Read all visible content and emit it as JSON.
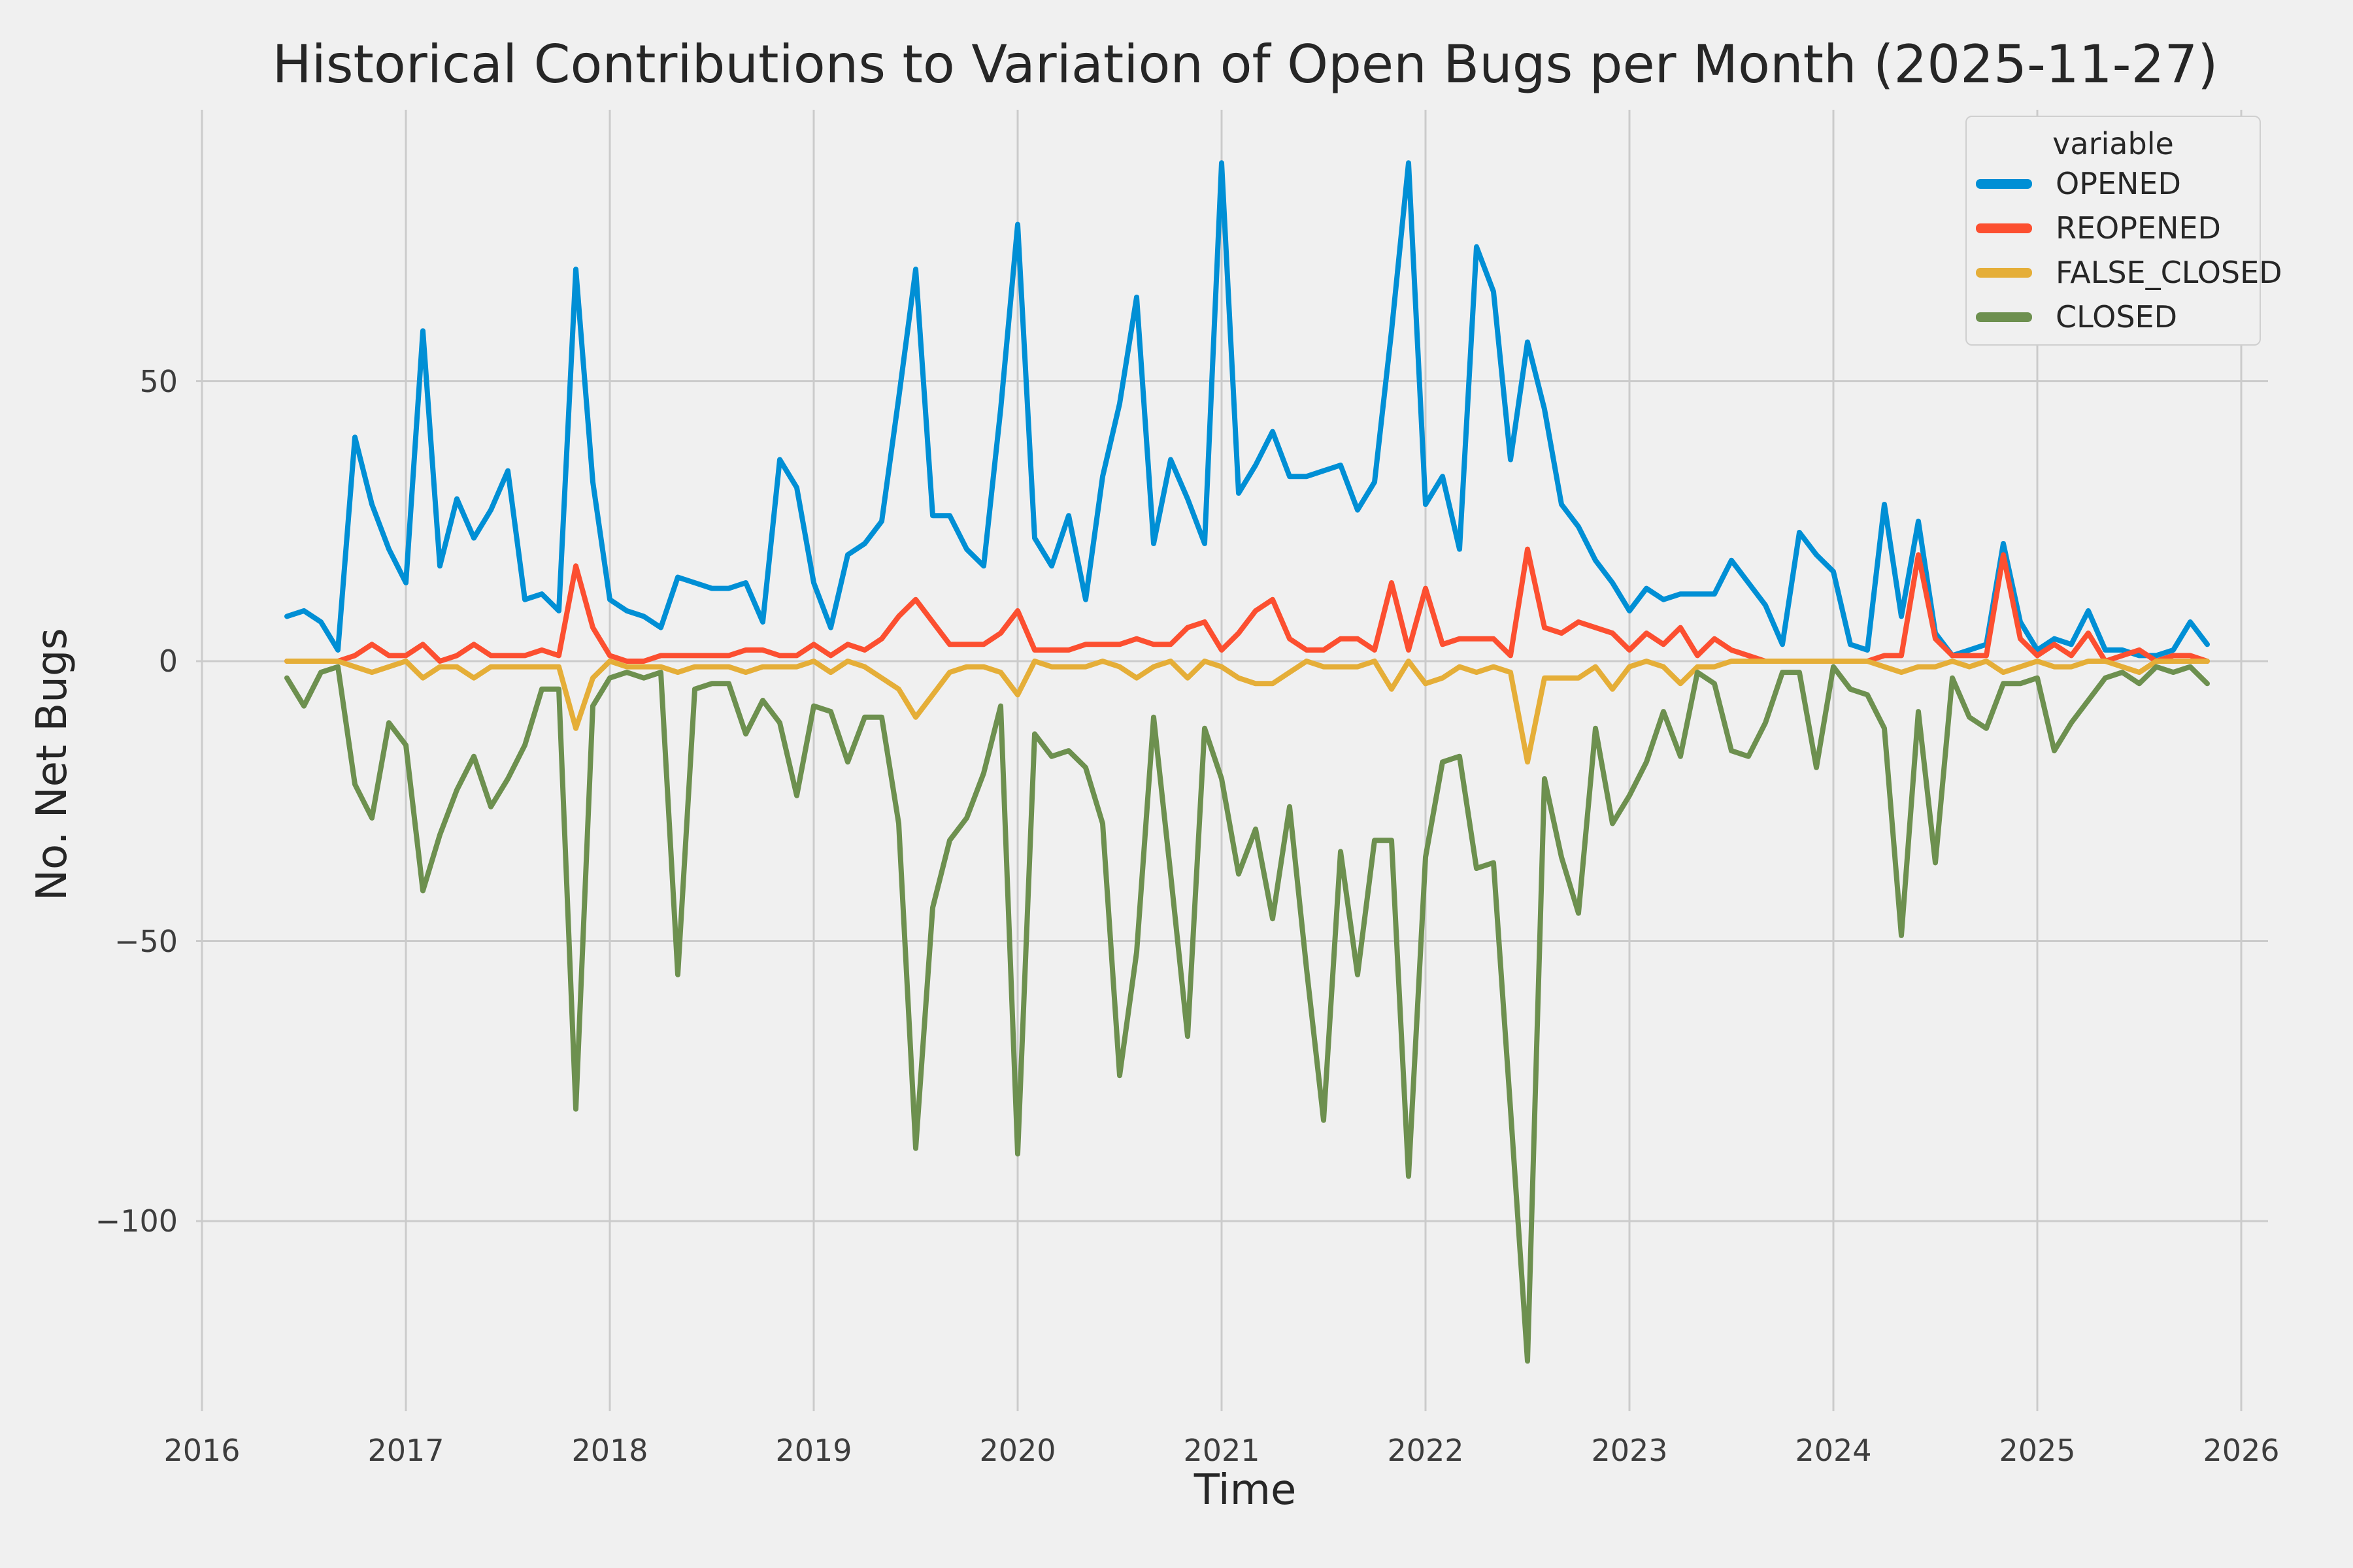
{
  "chart_data": {
    "type": "line",
    "title": "Historical Contributions to Variation of Open Bugs per Month (2025-11-27)",
    "xlabel": "Time",
    "ylabel": "No. Net Bugs",
    "legend_title": "variable",
    "legend_position": "upper right",
    "grid": true,
    "background_color": "#f0f0f0",
    "grid_color": "#cbcbcb",
    "text_color": "#262626",
    "tick_color": "#3d3d3d",
    "start_month": "2016-06",
    "end_month": "2025-11",
    "x_tick_labels": [
      "2016",
      "2017",
      "2018",
      "2019",
      "2020",
      "2021",
      "2022",
      "2023",
      "2024",
      "2025",
      "2026"
    ],
    "y_tick_values": [
      50,
      0,
      -50,
      -100
    ],
    "y_tick_labels": [
      "50",
      "0",
      "−50",
      "−100"
    ],
    "ylim": [
      -134,
      98
    ],
    "series": [
      {
        "name": "OPENED",
        "color": "#008fd5",
        "values": [
          8,
          9,
          7,
          2,
          40,
          28,
          20,
          14,
          59,
          17,
          29,
          22,
          27,
          34,
          11,
          12,
          9,
          70,
          32,
          11,
          9,
          8,
          6,
          15,
          14,
          13,
          13,
          14,
          7,
          36,
          31,
          14,
          6,
          19,
          21,
          25,
          47,
          70,
          26,
          26,
          20,
          17,
          45,
          78,
          22,
          17,
          26,
          11,
          33,
          46,
          65,
          21,
          36,
          29,
          21,
          89,
          30,
          35,
          41,
          33,
          33,
          34,
          35,
          27,
          32,
          59,
          89,
          28,
          33,
          20,
          74,
          66,
          36,
          57,
          45,
          28,
          24,
          18,
          14,
          9,
          13,
          11,
          12,
          12,
          12,
          18,
          14,
          10,
          3,
          23,
          19,
          16,
          3,
          2,
          28,
          8,
          25,
          5,
          1,
          2,
          3,
          21,
          7,
          2,
          4,
          3,
          9,
          2,
          2,
          1,
          1,
          2,
          7,
          3
        ]
      },
      {
        "name": "REOPENED",
        "color": "#fc4f30",
        "values": [
          0,
          0,
          0,
          0,
          1,
          3,
          1,
          1,
          3,
          0,
          1,
          3,
          1,
          1,
          1,
          2,
          1,
          17,
          6,
          1,
          0,
          0,
          1,
          1,
          1,
          1,
          1,
          2,
          2,
          1,
          1,
          3,
          1,
          3,
          2,
          4,
          8,
          11,
          7,
          3,
          3,
          3,
          5,
          9,
          2,
          2,
          2,
          3,
          3,
          3,
          4,
          3,
          3,
          6,
          7,
          2,
          5,
          9,
          11,
          4,
          2,
          2,
          4,
          4,
          2,
          14,
          2,
          13,
          3,
          4,
          4,
          4,
          1,
          20,
          6,
          5,
          7,
          6,
          5,
          2,
          5,
          3,
          6,
          1,
          4,
          2,
          1,
          0,
          0,
          0,
          0,
          0,
          0,
          0,
          1,
          1,
          19,
          4,
          1,
          1,
          1,
          19,
          4,
          1,
          3,
          1,
          5,
          0,
          1,
          2,
          0,
          1,
          1,
          0
        ]
      },
      {
        "name": "FALSE_CLOSED",
        "color": "#e5ae38",
        "values": [
          0,
          0,
          0,
          0,
          -1,
          -2,
          -1,
          0,
          -3,
          -1,
          -1,
          -3,
          -1,
          -1,
          -1,
          -1,
          -1,
          -12,
          -3,
          0,
          -1,
          -1,
          -1,
          -2,
          -1,
          -1,
          -1,
          -2,
          -1,
          -1,
          -1,
          0,
          -2,
          0,
          -1,
          -3,
          -5,
          -10,
          -6,
          -2,
          -1,
          -1,
          -2,
          -6,
          0,
          -1,
          -1,
          -1,
          0,
          -1,
          -3,
          -1,
          0,
          -3,
          0,
          -1,
          -3,
          -4,
          -4,
          -2,
          0,
          -1,
          -1,
          -1,
          0,
          -5,
          0,
          -4,
          -3,
          -1,
          -2,
          -1,
          -2,
          -18,
          -3,
          -3,
          -3,
          -1,
          -5,
          -1,
          0,
          -1,
          -4,
          -1,
          -1,
          0,
          0,
          0,
          0,
          0,
          0,
          0,
          0,
          0,
          -1,
          -2,
          -1,
          -1,
          0,
          -1,
          0,
          -2,
          -1,
          0,
          -1,
          -1,
          0,
          0,
          -1,
          -2,
          0,
          0,
          0,
          0
        ]
      },
      {
        "name": "CLOSED",
        "color": "#6d904f",
        "values": [
          -3,
          -8,
          -2,
          -1,
          -22,
          -28,
          -11,
          -15,
          -41,
          -31,
          -23,
          -17,
          -26,
          -21,
          -15,
          -5,
          -5,
          -80,
          -8,
          -3,
          -2,
          -3,
          -2,
          -56,
          -5,
          -4,
          -4,
          -13,
          -7,
          -11,
          -24,
          -8,
          -9,
          -18,
          -10,
          -10,
          -29,
          -87,
          -44,
          -32,
          -28,
          -20,
          -8,
          -88,
          -13,
          -17,
          -16,
          -19,
          -29,
          -74,
          -52,
          -10,
          -38,
          -67,
          -12,
          -21,
          -38,
          -30,
          -46,
          -26,
          -55,
          -82,
          -34,
          -56,
          -32,
          -32,
          -92,
          -35,
          -18,
          -17,
          -37,
          -36,
          -80,
          -125,
          -21,
          -35,
          -45,
          -12,
          -29,
          -24,
          -18,
          -9,
          -17,
          -2,
          -4,
          -16,
          -17,
          -11,
          -2,
          -2,
          -19,
          -1,
          -5,
          -6,
          -12,
          -49,
          -9,
          -36,
          -3,
          -10,
          -12,
          -4,
          -4,
          -3,
          -16,
          -11,
          -7,
          -3,
          -2,
          -4,
          -1,
          -2,
          -1,
          -4
        ]
      }
    ]
  }
}
